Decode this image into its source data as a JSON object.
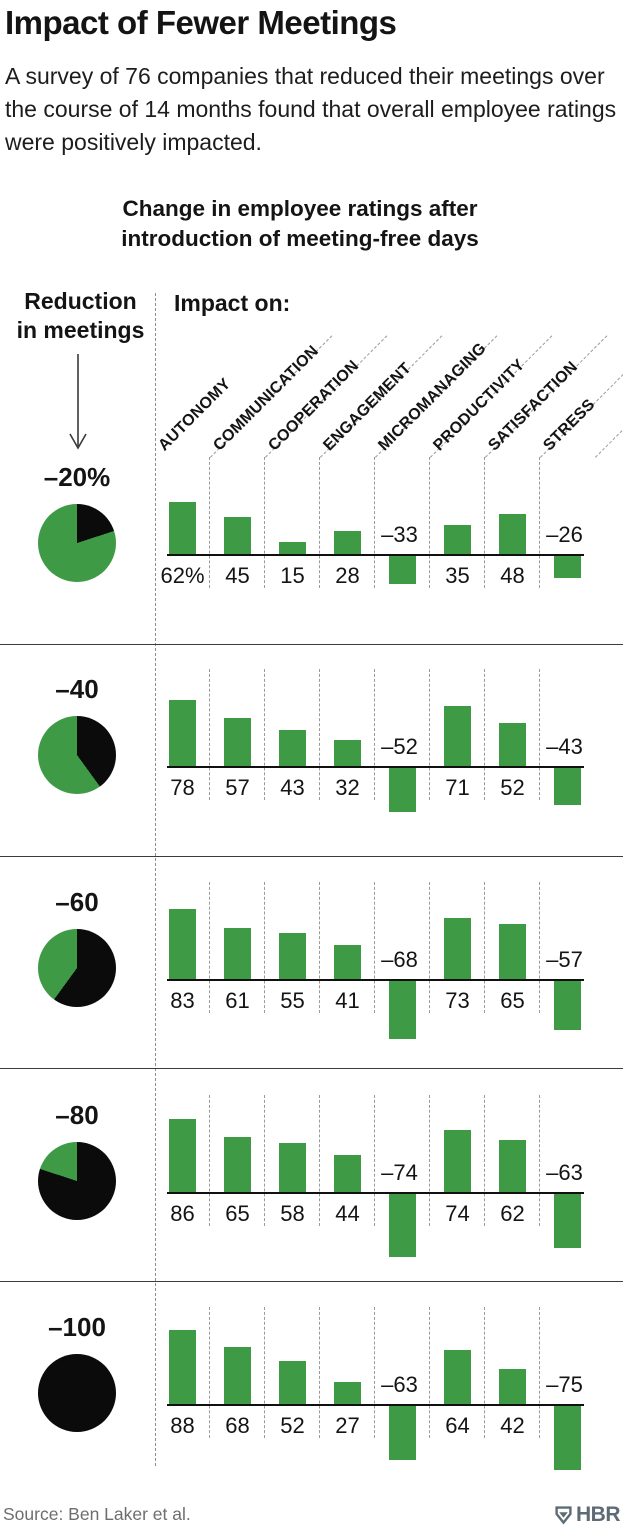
{
  "header": {
    "title": "Impact of Fewer Meetings",
    "subtitle": "A survey of 76 companies that reduced their meetings over the course of 14 months found that overall employee ratings were positively impacted.",
    "chart_title_line1": "Change in employee ratings after",
    "chart_title_line2": "introduction of meeting-free days"
  },
  "left_axis": {
    "label_line1": "Reduction",
    "label_line2": "in meetings",
    "arrow_icon": "down-arrow-icon"
  },
  "impact_label": "Impact on:",
  "columns": [
    "AUTONOMY",
    "COMMUNICATION",
    "COOPERATION",
    "ENGAGEMENT",
    "MICROMANAGING",
    "PRODUCTIVITY",
    "SATISFACTION",
    "STRESS"
  ],
  "rows": [
    {
      "reduction_label": "–20%",
      "reduction_pct": 20,
      "values": [
        62,
        45,
        15,
        28,
        -33,
        35,
        48,
        -26
      ],
      "value_labels": [
        "62%",
        "45",
        "15",
        "28",
        "–33",
        "35",
        "48",
        "–26"
      ]
    },
    {
      "reduction_label": "–40",
      "reduction_pct": 40,
      "values": [
        78,
        57,
        43,
        32,
        -52,
        71,
        52,
        -43
      ],
      "value_labels": [
        "78",
        "57",
        "43",
        "32",
        "–52",
        "71",
        "52",
        "–43"
      ]
    },
    {
      "reduction_label": "–60",
      "reduction_pct": 60,
      "values": [
        83,
        61,
        55,
        41,
        -68,
        73,
        65,
        -57
      ],
      "value_labels": [
        "83",
        "61",
        "55",
        "41",
        "–68",
        "73",
        "65",
        "–57"
      ]
    },
    {
      "reduction_label": "–80",
      "reduction_pct": 80,
      "values": [
        86,
        65,
        58,
        44,
        -74,
        74,
        62,
        -63
      ],
      "value_labels": [
        "86",
        "65",
        "58",
        "44",
        "–74",
        "74",
        "62",
        "–63"
      ]
    },
    {
      "reduction_label": "–100",
      "reduction_pct": 100,
      "values": [
        88,
        68,
        52,
        27,
        -63,
        64,
        42,
        -75
      ],
      "value_labels": [
        "88",
        "68",
        "52",
        "27",
        "–63",
        "64",
        "42",
        "–75"
      ]
    }
  ],
  "footer": {
    "source": "Source: Ben Laker et al.",
    "logo_text": "HBR",
    "logo_icon": "hbr-shield-icon"
  },
  "colors": {
    "positive_green": "#3e9a45",
    "pie_black": "#0b0b0b",
    "logo_slate": "#5d6b75"
  },
  "chart_data": {
    "type": "bar",
    "title": "Change in employee ratings after introduction of meeting-free days",
    "subtitle": "A survey of 76 companies that reduced their meetings over the course of 14 months found that overall employee ratings were positively impacted.",
    "layout": "small-multiples; one bar-chart row per meeting-reduction level; pie glyph at left shows % reduction in meetings (black share)",
    "categories": [
      "Autonomy",
      "Communication",
      "Cooperation",
      "Engagement",
      "Micromanaging",
      "Productivity",
      "Satisfaction",
      "Stress"
    ],
    "series": [
      {
        "name": "–20% reduction in meetings",
        "values": [
          62,
          45,
          15,
          28,
          -33,
          35,
          48,
          -26
        ]
      },
      {
        "name": "–40 reduction in meetings",
        "values": [
          78,
          57,
          43,
          32,
          -52,
          71,
          52,
          -43
        ]
      },
      {
        "name": "–60 reduction in meetings",
        "values": [
          83,
          61,
          55,
          41,
          -68,
          73,
          65,
          -57
        ]
      },
      {
        "name": "–80 reduction in meetings",
        "values": [
          86,
          65,
          58,
          44,
          -74,
          74,
          62,
          -63
        ]
      },
      {
        "name": "–100 reduction in meetings",
        "values": [
          88,
          68,
          52,
          27,
          -63,
          64,
          42,
          -75
        ]
      }
    ],
    "unit": "%",
    "ylim": [
      -100,
      100
    ],
    "grid": false,
    "legend_position": "none",
    "source": "Source: Ben Laker et al."
  }
}
